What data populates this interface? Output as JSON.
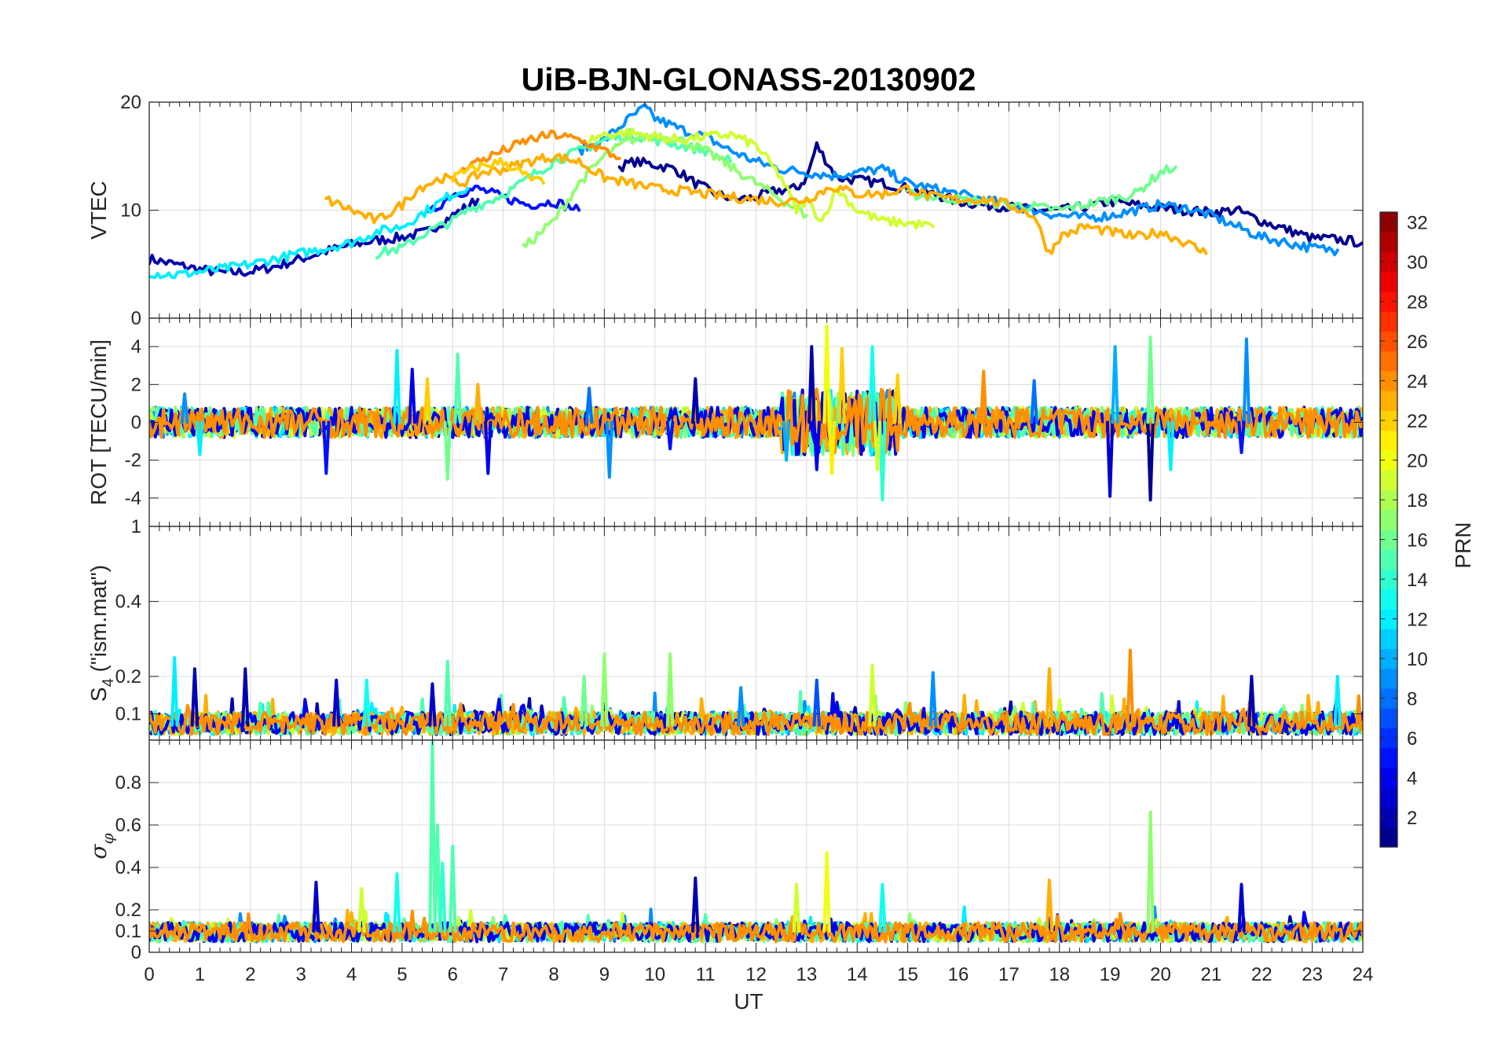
{
  "chart_data": {
    "type": "line",
    "title": "UiB-BJN-GLONASS-20130902",
    "xlabel": "UT",
    "xlim": [
      0,
      24
    ],
    "x_ticks": [
      "0",
      "1",
      "2",
      "3",
      "4",
      "5",
      "6",
      "7",
      "8",
      "9",
      "10",
      "11",
      "12",
      "13",
      "14",
      "15",
      "16",
      "17",
      "18",
      "19",
      "20",
      "21",
      "22",
      "23",
      "24"
    ],
    "grid": true,
    "panels": [
      {
        "id": "vtec",
        "ylabel": "VTEC",
        "ylim": [
          0,
          20
        ],
        "y_ticks": [
          {
            "v": 0,
            "t": "0"
          },
          {
            "v": 10,
            "t": "10"
          },
          {
            "v": 20,
            "t": "20"
          }
        ],
        "series": [
          {
            "prn": 2,
            "x": [
              0,
              0.5,
              1,
              1.5,
              2,
              2.5,
              3,
              3.5,
              4,
              4.5,
              5,
              5.5,
              6,
              6.5
            ],
            "y": [
              5.5,
              5,
              4.5,
              4.2,
              4.3,
              4.8,
              5.5,
              6.2,
              6.8,
              7.2,
              7.5,
              8,
              9.5,
              11
            ]
          },
          {
            "prn": 1,
            "x": [
              9.3,
              9.6,
              10,
              10.4,
              10.8,
              11.2,
              11.6,
              12,
              12.4,
              12.8,
              13,
              13.2,
              13.6,
              14,
              14.5,
              15,
              15.5,
              16,
              16.5,
              17,
              17.5,
              18,
              18.5,
              19,
              19.5,
              20,
              20.5,
              21,
              21.5,
              22,
              22.5,
              23,
              23.5,
              24
            ],
            "y": [
              14,
              14.5,
              14.2,
              13.8,
              12.5,
              11.5,
              11,
              11.2,
              11.8,
              12,
              13,
              16,
              13,
              12.8,
              12.5,
              12,
              11.5,
              10.8,
              10.5,
              10.3,
              10,
              10,
              10.3,
              10.8,
              10.5,
              10.2,
              10,
              9.8,
              10,
              9,
              8.2,
              7.4,
              7.3,
              7.0
            ]
          },
          {
            "prn": 5,
            "x": [
              5.5,
              6,
              6.5,
              7,
              7.5,
              8,
              8.5
            ],
            "y": [
              9.5,
              11.5,
              12,
              11.2,
              10.5,
              10.8,
              10
            ]
          },
          {
            "prn": 9,
            "x": [
              8.5,
              9,
              9.5,
              9.8,
              10,
              10.5,
              11,
              11.5,
              12,
              12.5,
              13,
              13.5,
              14,
              14.5,
              15,
              15.5,
              16,
              16.5,
              17,
              17.5,
              18,
              18.5,
              19,
              19.5,
              20,
              20.5,
              21,
              21.5,
              22,
              22.5,
              23,
              23.5
            ],
            "y": [
              15.5,
              16.5,
              18.5,
              19.5,
              18.5,
              17.5,
              16.8,
              15.5,
              14.5,
              13.8,
              13.5,
              13.2,
              13.5,
              13.8,
              12.5,
              12,
              11.5,
              11,
              10.5,
              10,
              9.5,
              9.3,
              9.5,
              10,
              10.5,
              10.2,
              9.5,
              8.5,
              7.5,
              7,
              6.5,
              6.3
            ]
          },
          {
            "prn": 12,
            "x": [
              0,
              0.5,
              1,
              1.5,
              2,
              2.5,
              3,
              3.5,
              4,
              4.5,
              5,
              5.5,
              6,
              6.3
            ],
            "y": [
              4.2,
              4,
              4.3,
              4.6,
              5,
              5.5,
              6,
              6.5,
              7,
              8,
              8.5,
              10,
              11.5,
              12
            ]
          },
          {
            "prn": 15,
            "x": [
              4.5,
              5,
              5.5,
              6,
              6.3,
              6.8,
              7.2,
              7.5,
              8,
              8.5,
              9,
              9.5,
              10,
              10.5,
              11,
              11.5
            ],
            "y": [
              6,
              6.5,
              8,
              9,
              10,
              11,
              12,
              13,
              14.5,
              15.5,
              16.5,
              17,
              16.5,
              16,
              15.5,
              14.5
            ]
          },
          {
            "prn": 16,
            "x": [
              15,
              15.5,
              16,
              16.5,
              17,
              17.5,
              18,
              18.5,
              19,
              19.5,
              20,
              20.3
            ],
            "y": [
              11.5,
              11.2,
              11,
              10.8,
              10.5,
              10.3,
              10,
              10.5,
              11,
              11.5,
              13.5,
              14
            ]
          },
          {
            "prn": 17,
            "x": [
              7.4,
              8,
              8.5,
              9,
              9.5,
              10,
              10.5,
              11,
              11.5,
              12,
              12.5,
              13
            ],
            "y": [
              6.5,
              9,
              12.5,
              15,
              16.5,
              17,
              16.5,
              15.5,
              14,
              12.5,
              11,
              9.5
            ]
          },
          {
            "prn": 19,
            "x": [
              8.7,
              9,
              9.5,
              10,
              10.5,
              11,
              11.5,
              12,
              12.5,
              12.8,
              13,
              13.3,
              13.6,
              14,
              14.5,
              15,
              15.5
            ],
            "y": [
              16.5,
              17,
              17.2,
              16.8,
              16.5,
              16.8,
              17,
              16,
              13,
              10,
              11,
              9,
              12,
              10,
              9,
              8.8,
              8.5
            ]
          },
          {
            "prn": 23,
            "x": [
              3.5,
              4,
              4.5,
              5,
              5.3,
              5.8,
              6.2,
              6.6,
              7,
              7.5,
              8,
              8.5,
              9,
              9.5,
              10,
              10.5,
              11,
              11.5,
              12,
              12.5,
              13,
              13.5,
              14,
              14.5,
              15,
              15.5,
              16,
              16.5,
              17,
              17.5,
              17.8,
              18,
              18.5,
              19,
              19.5,
              20,
              20.5,
              20.9
            ],
            "y": [
              11,
              10,
              9,
              10.5,
              12,
              13,
              12.5,
              13.5,
              13.8,
              14.5,
              15,
              14.5,
              13,
              12.5,
              12,
              11.8,
              11.5,
              11.2,
              11,
              10.8,
              11,
              12.2,
              11.5,
              11.5,
              12,
              11.2,
              11,
              11,
              10.5,
              9.5,
              6,
              7.5,
              8.5,
              8,
              7.5,
              8,
              7,
              6
            ]
          },
          {
            "prn": 24,
            "x": [
              6.2,
              6.5,
              7,
              7.5,
              8,
              8.5,
              9,
              9.3
            ],
            "y": [
              14,
              14.5,
              15.5,
              16.5,
              17,
              16.5,
              15.5,
              14.8
            ]
          },
          {
            "prn": 22,
            "x": [
              6,
              6.5,
              7,
              7.5,
              7.8
            ],
            "y": [
              13,
              14,
              14.5,
              13,
              12.5
            ]
          }
        ]
      },
      {
        "id": "rot",
        "ylabel": "ROT [TECU/min]",
        "ylim": [
          -5.5,
          5.5
        ],
        "y_ticks": [
          {
            "v": -4,
            "t": "-4"
          },
          {
            "v": -2,
            "t": "-2"
          },
          {
            "v": 0,
            "t": "0"
          },
          {
            "v": 2,
            "t": "2"
          },
          {
            "v": 4,
            "t": "4"
          }
        ],
        "spikes": [
          {
            "x": 0.7,
            "y": 1.5,
            "prn": 9
          },
          {
            "x": 1.0,
            "y": -1.7,
            "prn": 12
          },
          {
            "x": 3.5,
            "y": -2.7,
            "prn": 5
          },
          {
            "x": 4.9,
            "y": 3.8,
            "prn": 12
          },
          {
            "x": 5.2,
            "y": 2.8,
            "prn": 4
          },
          {
            "x": 5.5,
            "y": 2.3,
            "prn": 22
          },
          {
            "x": 5.9,
            "y": -3.0,
            "prn": 16
          },
          {
            "x": 6.1,
            "y": 3.6,
            "prn": 15
          },
          {
            "x": 6.5,
            "y": 2.0,
            "prn": 23
          },
          {
            "x": 6.7,
            "y": -2.7,
            "prn": 4
          },
          {
            "x": 8.7,
            "y": 1.8,
            "prn": 8
          },
          {
            "x": 9.1,
            "y": -2.9,
            "prn": 9
          },
          {
            "x": 10.3,
            "y": -1.4,
            "prn": 5
          },
          {
            "x": 10.8,
            "y": 2.3,
            "prn": 2
          },
          {
            "x": 12.6,
            "y": -2.0,
            "prn": 10
          },
          {
            "x": 13.1,
            "y": 4.0,
            "prn": 2
          },
          {
            "x": 13.2,
            "y": -2.5,
            "prn": 4
          },
          {
            "x": 13.4,
            "y": 5.1,
            "prn": 20
          },
          {
            "x": 13.5,
            "y": -2.7,
            "prn": 21
          },
          {
            "x": 13.7,
            "y": 3.9,
            "prn": 22
          },
          {
            "x": 14.3,
            "y": 4.0,
            "prn": 13
          },
          {
            "x": 14.5,
            "y": -4.1,
            "prn": 14
          },
          {
            "x": 14.4,
            "y": -2.5,
            "prn": 19
          },
          {
            "x": 14.8,
            "y": 2.5,
            "prn": 22
          },
          {
            "x": 16.5,
            "y": 2.7,
            "prn": 24
          },
          {
            "x": 17.5,
            "y": 2.2,
            "prn": 8
          },
          {
            "x": 19.0,
            "y": -3.9,
            "prn": 3
          },
          {
            "x": 19.1,
            "y": 4.0,
            "prn": 10
          },
          {
            "x": 19.8,
            "y": -4.1,
            "prn": 1
          },
          {
            "x": 19.8,
            "y": 4.5,
            "prn": 16
          },
          {
            "x": 20.2,
            "y": -2.5,
            "prn": 12
          },
          {
            "x": 21.7,
            "y": 4.4,
            "prn": 9
          },
          {
            "x": 21.6,
            "y": -1.6,
            "prn": 5
          }
        ]
      },
      {
        "id": "s4",
        "ylabel": "S",
        "ylabel_sub": "4",
        "ylabel_tail": " (\"ism.mat\")",
        "ylim": [
          0.03,
          0.6
        ],
        "y_ticks": [
          {
            "v": 0.1,
            "t": "0.1"
          },
          {
            "v": 0.2,
            "t": "0.2"
          },
          {
            "v": 0.4,
            "t": "0.4"
          }
        ],
        "top_label": "1",
        "spikes": [
          {
            "x": 0.5,
            "y": 0.25,
            "prn": 12
          },
          {
            "x": 0.9,
            "y": 0.22,
            "prn": 2
          },
          {
            "x": 1.9,
            "y": 0.22,
            "prn": 2
          },
          {
            "x": 3.7,
            "y": 0.19,
            "prn": 3
          },
          {
            "x": 4.3,
            "y": 0.19,
            "prn": 13
          },
          {
            "x": 5.6,
            "y": 0.18,
            "prn": 3
          },
          {
            "x": 5.9,
            "y": 0.24,
            "prn": 15
          },
          {
            "x": 8.6,
            "y": 0.2,
            "prn": 16
          },
          {
            "x": 9.0,
            "y": 0.26,
            "prn": 17
          },
          {
            "x": 10.3,
            "y": 0.26,
            "prn": 17
          },
          {
            "x": 11.7,
            "y": 0.17,
            "prn": 9
          },
          {
            "x": 13.2,
            "y": 0.19,
            "prn": 7
          },
          {
            "x": 14.3,
            "y": 0.23,
            "prn": 19
          },
          {
            "x": 15.5,
            "y": 0.21,
            "prn": 9
          },
          {
            "x": 17.8,
            "y": 0.22,
            "prn": 23
          },
          {
            "x": 19.4,
            "y": 0.27,
            "prn": 24
          },
          {
            "x": 21.8,
            "y": 0.2,
            "prn": 2
          },
          {
            "x": 23.5,
            "y": 0.2,
            "prn": 12
          }
        ]
      },
      {
        "id": "sigma_phi",
        "ylabel": "σ",
        "ylabel_sub": "φ",
        "ylim": [
          0,
          1
        ],
        "y_ticks": [
          {
            "v": 0,
            "t": "0"
          },
          {
            "v": 0.1,
            "t": "0.1"
          },
          {
            "v": 0.2,
            "t": "0.2"
          },
          {
            "v": 0.4,
            "t": "0.4"
          },
          {
            "v": 0.6,
            "t": "0.6"
          },
          {
            "v": 0.8,
            "t": "0.8"
          }
        ],
        "spikes": [
          {
            "x": 3.3,
            "y": 0.33,
            "prn": 3
          },
          {
            "x": 4.2,
            "y": 0.3,
            "prn": 19
          },
          {
            "x": 4.9,
            "y": 0.37,
            "prn": 13
          },
          {
            "x": 5.6,
            "y": 1.0,
            "prn": 15
          },
          {
            "x": 5.7,
            "y": 0.6,
            "prn": 15
          },
          {
            "x": 5.8,
            "y": 0.42,
            "prn": 14
          },
          {
            "x": 6.0,
            "y": 0.5,
            "prn": 15
          },
          {
            "x": 10.8,
            "y": 0.35,
            "prn": 2
          },
          {
            "x": 12.8,
            "y": 0.32,
            "prn": 19
          },
          {
            "x": 13.4,
            "y": 0.47,
            "prn": 20
          },
          {
            "x": 14.5,
            "y": 0.32,
            "prn": 13
          },
          {
            "x": 17.8,
            "y": 0.34,
            "prn": 23
          },
          {
            "x": 19.8,
            "y": 0.66,
            "prn": 17
          },
          {
            "x": 21.6,
            "y": 0.32,
            "prn": 3
          }
        ]
      }
    ],
    "colorbar": {
      "label": "PRN",
      "range": [
        1,
        32
      ],
      "ticks": [
        2,
        4,
        6,
        8,
        10,
        12,
        14,
        16,
        18,
        20,
        22,
        24,
        26,
        28,
        30,
        32
      ],
      "colormap": "jet"
    }
  }
}
